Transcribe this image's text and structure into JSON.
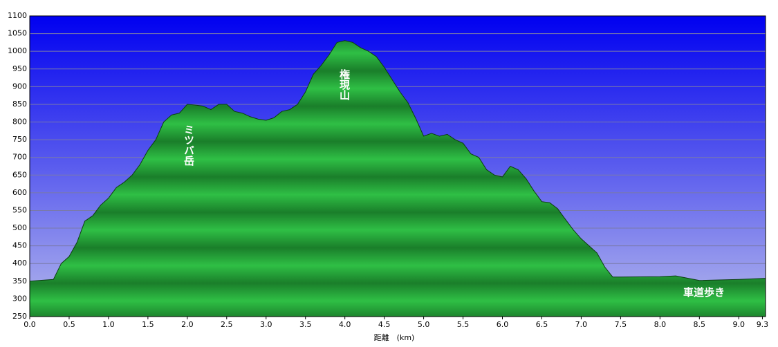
{
  "chart_data": {
    "type": "area",
    "x_label": "距離　(km)",
    "x": [
      0.0,
      0.3,
      0.4,
      0.5,
      0.6,
      0.7,
      0.8,
      0.9,
      1.0,
      1.1,
      1.2,
      1.3,
      1.4,
      1.5,
      1.6,
      1.7,
      1.8,
      1.9,
      2.0,
      2.1,
      2.2,
      2.3,
      2.4,
      2.5,
      2.6,
      2.7,
      2.8,
      2.9,
      3.0,
      3.1,
      3.2,
      3.3,
      3.4,
      3.5,
      3.6,
      3.7,
      3.8,
      3.9,
      4.0,
      4.1,
      4.2,
      4.3,
      4.4,
      4.5,
      4.6,
      4.7,
      4.8,
      4.9,
      5.0,
      5.1,
      5.2,
      5.3,
      5.4,
      5.5,
      5.6,
      5.7,
      5.8,
      5.9,
      6.0,
      6.1,
      6.2,
      6.3,
      6.4,
      6.5,
      6.6,
      6.7,
      6.8,
      6.9,
      7.0,
      7.1,
      7.2,
      7.3,
      7.4,
      7.5,
      8.0,
      8.2,
      8.5,
      9.0,
      9.34
    ],
    "values": [
      350,
      355,
      400,
      420,
      460,
      520,
      535,
      565,
      585,
      615,
      630,
      650,
      680,
      720,
      750,
      800,
      820,
      825,
      850,
      848,
      845,
      835,
      850,
      850,
      830,
      825,
      815,
      808,
      805,
      812,
      830,
      835,
      850,
      885,
      935,
      960,
      990,
      1025,
      1030,
      1025,
      1010,
      1000,
      985,
      955,
      920,
      885,
      855,
      810,
      760,
      768,
      760,
      765,
      750,
      740,
      710,
      700,
      665,
      650,
      645,
      675,
      665,
      640,
      605,
      575,
      572,
      555,
      525,
      495,
      470,
      450,
      430,
      390,
      362,
      362,
      363,
      365,
      352,
      355,
      358
    ],
    "color": "#1e9e32",
    "xlim": [
      0,
      9.34
    ],
    "ylim": [
      250,
      1100
    ],
    "xticks": [
      {
        "value": 0,
        "label": "0.0"
      },
      0.5,
      {
        "value": 1,
        "label": "1.0"
      },
      1.5,
      {
        "value": 2,
        "label": "2.0"
      },
      2.5,
      {
        "value": 3,
        "label": "3.0"
      },
      3.5,
      {
        "value": 4,
        "label": "4.0"
      },
      4.5,
      {
        "value": 5,
        "label": "5.0"
      },
      5.5,
      {
        "value": 6,
        "label": "6.0"
      },
      6.5,
      {
        "value": 7,
        "label": "7.0"
      },
      7.5,
      {
        "value": 8,
        "label": "8.0"
      },
      8.5,
      {
        "value": 9,
        "label": "9.0"
      },
      9.3
    ],
    "yticks": [
      250,
      300,
      350,
      400,
      450,
      500,
      550,
      600,
      650,
      700,
      750,
      800,
      850,
      900,
      950,
      1000,
      1050,
      1100
    ],
    "grid": true,
    "annotations": [
      "ミツバ岳",
      "権現山",
      "車道歩き"
    ]
  }
}
